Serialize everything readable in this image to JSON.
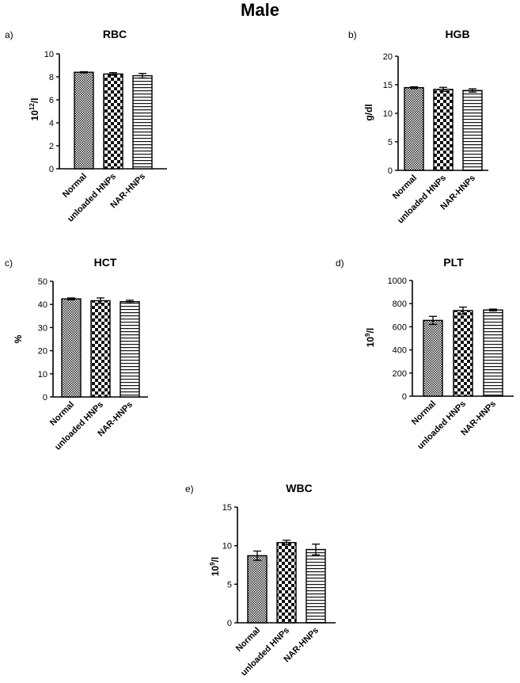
{
  "page": {
    "title": "Male"
  },
  "chart_data": [
    {
      "panel": "a)",
      "type": "bar",
      "title": "RBC",
      "ylabel": "10^12/l",
      "ylabel_base": "10",
      "ylabel_sup": "12",
      "ylabel_suffix": "/l",
      "categories": [
        "Normal",
        "unloaded HNPs",
        "NAR-HNPs"
      ],
      "values": [
        8.4,
        8.25,
        8.1
      ],
      "errors": [
        0.05,
        0.12,
        0.2
      ],
      "patterns": [
        "dense",
        "checker",
        "hlines"
      ],
      "ylim": [
        0,
        10
      ],
      "yticks": [
        0,
        2,
        4,
        6,
        8,
        10
      ],
      "grid": false
    },
    {
      "panel": "b)",
      "type": "bar",
      "title": "HGB",
      "ylabel": "g/dl",
      "ylabel_base": "g/dl",
      "ylabel_sup": "",
      "ylabel_suffix": "",
      "categories": [
        "Normal",
        "unloaded HNPs",
        "NAR-HNPs"
      ],
      "values": [
        14.5,
        14.2,
        14.0
      ],
      "errors": [
        0.15,
        0.35,
        0.3
      ],
      "patterns": [
        "dense",
        "checker",
        "hlines"
      ],
      "ylim": [
        0,
        20
      ],
      "yticks": [
        0,
        5,
        10,
        15,
        20
      ],
      "grid": false
    },
    {
      "panel": "c)",
      "type": "bar",
      "title": "HCT",
      "ylabel": "%",
      "ylabel_base": "%",
      "ylabel_sup": "",
      "ylabel_suffix": "",
      "categories": [
        "Normal",
        "unloaded HNPs",
        "NAR-HNPs"
      ],
      "values": [
        42.4,
        41.6,
        41.2
      ],
      "errors": [
        0.4,
        1.2,
        0.6
      ],
      "patterns": [
        "dense",
        "checker",
        "hlines"
      ],
      "ylim": [
        0,
        50
      ],
      "yticks": [
        0,
        10,
        20,
        30,
        40,
        50
      ],
      "grid": false
    },
    {
      "panel": "d)",
      "type": "bar",
      "title": "PLT",
      "ylabel": "10^9/l",
      "ylabel_base": "10",
      "ylabel_sup": "9",
      "ylabel_suffix": "/l",
      "categories": [
        "Normal",
        "unloaded HNPs",
        "NAR-HNPs"
      ],
      "values": [
        655,
        740,
        745
      ],
      "errors": [
        35,
        30,
        8
      ],
      "patterns": [
        "dense",
        "checker",
        "hlines"
      ],
      "ylim": [
        0,
        1000
      ],
      "yticks": [
        0,
        200,
        400,
        600,
        800,
        1000
      ],
      "grid": false
    },
    {
      "panel": "e)",
      "type": "bar",
      "title": "WBC",
      "ylabel": "10^9/l",
      "ylabel_base": "10",
      "ylabel_sup": "9",
      "ylabel_suffix": "/l",
      "categories": [
        "Normal",
        "unloaded HNPs",
        "NAR-HNPs"
      ],
      "values": [
        8.7,
        10.4,
        9.5
      ],
      "errors": [
        0.6,
        0.3,
        0.7
      ],
      "patterns": [
        "dense",
        "checker",
        "hlines"
      ],
      "ylim": [
        0,
        15
      ],
      "yticks": [
        0,
        5,
        10,
        15
      ],
      "grid": false
    }
  ]
}
